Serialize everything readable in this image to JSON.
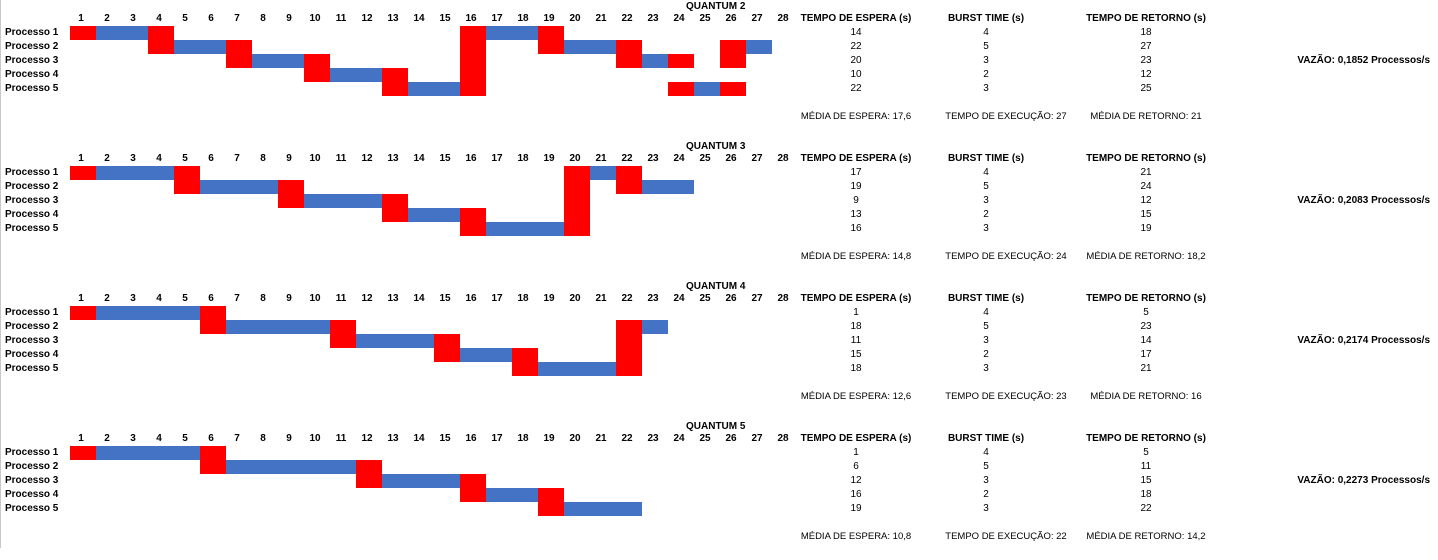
{
  "colors": {
    "run": "#4472c4",
    "context_switch": "#ff0000",
    "grid": "#c8c8c8"
  },
  "headers": {
    "espera": "TEMPO DE ESPERA (s)",
    "burst": "BURST TIME  (s)",
    "retorno": "TEMPO DE RETORNO  (s)"
  },
  "ticks": [
    "1",
    "2",
    "3",
    "4",
    "5",
    "6",
    "7",
    "8",
    "9",
    "10",
    "11",
    "12",
    "13",
    "14",
    "15",
    "16",
    "17",
    "18",
    "19",
    "20",
    "21",
    "22",
    "23",
    "24",
    "25",
    "26",
    "27",
    "28"
  ],
  "process_labels": [
    "Processo 1",
    "Processo 2",
    "Processo 3",
    "Processo 4",
    "Processo 5"
  ],
  "quanta": [
    {
      "title": "QUANTUM 2",
      "rows": [
        {
          "espera": "14",
          "burst": "4",
          "retorno": "18"
        },
        {
          "espera": "22",
          "burst": "5",
          "retorno": "27"
        },
        {
          "espera": "20",
          "burst": "3",
          "retorno": "23"
        },
        {
          "espera": "10",
          "burst": "2",
          "retorno": "12"
        },
        {
          "espera": "22",
          "burst": "3",
          "retorno": "25"
        }
      ],
      "media_espera": "MÉDIA DE ESPERA: 17,6",
      "tempo_execucao": "TEMPO DE EXECUÇÃO: 27",
      "media_retorno": "MÉDIA DE RETORNO: 21",
      "vazao": "VAZÃO: 0,1852 Processos/s",
      "gantt": [
        [
          [
            "c",
            1
          ],
          [
            "r",
            2,
            3
          ],
          [
            "c",
            4
          ],
          [
            "c",
            16
          ],
          [
            "r",
            17,
            18
          ],
          [
            "c",
            19
          ]
        ],
        [
          [
            "c",
            4
          ],
          [
            "r",
            5,
            6
          ],
          [
            "c",
            7
          ],
          [
            "c",
            16
          ],
          [
            "c",
            19
          ],
          [
            "r",
            20,
            21
          ],
          [
            "c",
            22
          ],
          [
            "c",
            26
          ],
          [
            "r",
            27,
            27
          ]
        ],
        [
          [
            "c",
            7
          ],
          [
            "r",
            8,
            9
          ],
          [
            "c",
            10
          ],
          [
            "c",
            16
          ],
          [
            "c",
            22
          ],
          [
            "r",
            23,
            23
          ],
          [
            "c",
            24
          ],
          [
            "c",
            26
          ]
        ],
        [
          [
            "c",
            10
          ],
          [
            "r",
            11,
            12
          ],
          [
            "c",
            13
          ],
          [
            "c",
            16
          ]
        ],
        [
          [
            "c",
            13
          ],
          [
            "r",
            14,
            15
          ],
          [
            "c",
            16
          ],
          [
            "c",
            24
          ],
          [
            "r",
            25,
            25
          ],
          [
            "c",
            26
          ]
        ]
      ]
    },
    {
      "title": "QUANTUM 3",
      "rows": [
        {
          "espera": "17",
          "burst": "4",
          "retorno": "21"
        },
        {
          "espera": "19",
          "burst": "5",
          "retorno": "24"
        },
        {
          "espera": "9",
          "burst": "3",
          "retorno": "12"
        },
        {
          "espera": "13",
          "burst": "2",
          "retorno": "15"
        },
        {
          "espera": "16",
          "burst": "3",
          "retorno": "19"
        }
      ],
      "media_espera": "MÉDIA DE ESPERA: 14,8",
      "tempo_execucao": "TEMPO DE EXECUÇÃO: 24",
      "media_retorno": "MÉDIA DE RETORNO: 18,2",
      "vazao": "VAZÃO: 0,2083 Processos/s",
      "gantt": [
        [
          [
            "c",
            1
          ],
          [
            "r",
            2,
            4
          ],
          [
            "c",
            5
          ],
          [
            "c",
            20
          ],
          [
            "r",
            21,
            21
          ],
          [
            "c",
            22
          ]
        ],
        [
          [
            "c",
            5
          ],
          [
            "r",
            6,
            8
          ],
          [
            "c",
            9
          ],
          [
            "c",
            20
          ],
          [
            "c",
            22
          ],
          [
            "r",
            23,
            24
          ]
        ],
        [
          [
            "c",
            9
          ],
          [
            "r",
            10,
            12
          ],
          [
            "c",
            13
          ],
          [
            "c",
            20
          ]
        ],
        [
          [
            "c",
            13
          ],
          [
            "r",
            14,
            15
          ],
          [
            "c",
            16
          ],
          [
            "c",
            20
          ]
        ],
        [
          [
            "c",
            16
          ],
          [
            "r",
            17,
            19
          ],
          [
            "c",
            20
          ]
        ]
      ]
    },
    {
      "title": "QUANTUM 4",
      "rows": [
        {
          "espera": "1",
          "burst": "4",
          "retorno": "5"
        },
        {
          "espera": "18",
          "burst": "5",
          "retorno": "23"
        },
        {
          "espera": "11",
          "burst": "3",
          "retorno": "14"
        },
        {
          "espera": "15",
          "burst": "2",
          "retorno": "17"
        },
        {
          "espera": "18",
          "burst": "3",
          "retorno": "21"
        }
      ],
      "media_espera": "MÉDIA DE ESPERA: 12,6",
      "tempo_execucao": "TEMPO DE EXECUÇÃO: 23",
      "media_retorno": "MÉDIA DE RETORNO: 16",
      "vazao": "VAZÃO: 0,2174 Processos/s",
      "gantt": [
        [
          [
            "c",
            1
          ],
          [
            "r",
            2,
            5
          ],
          [
            "c",
            6
          ]
        ],
        [
          [
            "c",
            6
          ],
          [
            "r",
            7,
            10
          ],
          [
            "c",
            11
          ],
          [
            "c",
            22
          ],
          [
            "r",
            23,
            23
          ]
        ],
        [
          [
            "c",
            11
          ],
          [
            "r",
            12,
            14
          ],
          [
            "c",
            15
          ],
          [
            "c",
            22
          ]
        ],
        [
          [
            "c",
            15
          ],
          [
            "r",
            16,
            17
          ],
          [
            "c",
            18
          ],
          [
            "c",
            22
          ]
        ],
        [
          [
            "c",
            18
          ],
          [
            "r",
            19,
            21
          ],
          [
            "c",
            22
          ]
        ]
      ]
    },
    {
      "title": "QUANTUM 5",
      "rows": [
        {
          "espera": "1",
          "burst": "4",
          "retorno": "5"
        },
        {
          "espera": "6",
          "burst": "5",
          "retorno": "11"
        },
        {
          "espera": "12",
          "burst": "3",
          "retorno": "15"
        },
        {
          "espera": "16",
          "burst": "2",
          "retorno": "18"
        },
        {
          "espera": "19",
          "burst": "3",
          "retorno": "22"
        }
      ],
      "media_espera": "MÉDIA DE ESPERA: 10,8",
      "tempo_execucao": "TEMPO DE EXECUÇÃO: 22",
      "media_retorno": "MÉDIA DE RETORNO: 14,2",
      "vazao": "VAZÃO: 0,2273 Processos/s",
      "gantt": [
        [
          [
            "c",
            1
          ],
          [
            "r",
            2,
            5
          ],
          [
            "c",
            6
          ]
        ],
        [
          [
            "c",
            6
          ],
          [
            "r",
            7,
            11
          ],
          [
            "c",
            12
          ]
        ],
        [
          [
            "c",
            12
          ],
          [
            "r",
            13,
            15
          ],
          [
            "c",
            16
          ]
        ],
        [
          [
            "c",
            16
          ],
          [
            "r",
            17,
            18
          ],
          [
            "c",
            19
          ]
        ],
        [
          [
            "c",
            19
          ],
          [
            "r",
            20,
            22
          ]
        ]
      ]
    }
  ]
}
